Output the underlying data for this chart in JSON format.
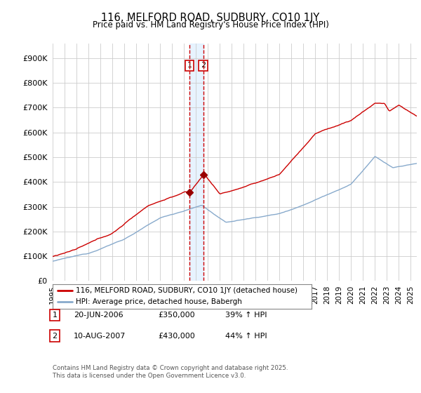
{
  "title": "116, MELFORD ROAD, SUDBURY, CO10 1JY",
  "subtitle": "Price paid vs. HM Land Registry's House Price Index (HPI)",
  "y_values": [
    0,
    100000,
    200000,
    300000,
    400000,
    500000,
    600000,
    700000,
    800000,
    900000
  ],
  "ylim": [
    0,
    960000
  ],
  "xlim_start": 1995.0,
  "xlim_end": 2025.5,
  "transaction1": {
    "date": "20-JUN-2006",
    "price": 350000,
    "hpi_pct": "39%",
    "label": "1",
    "x": 2006.46
  },
  "transaction2": {
    "date": "10-AUG-2007",
    "price": 430000,
    "hpi_pct": "44%",
    "label": "2",
    "x": 2007.61
  },
  "legend_line1": "116, MELFORD ROAD, SUDBURY, CO10 1JY (detached house)",
  "legend_line2": "HPI: Average price, detached house, Babergh",
  "footnote1": "Contains HM Land Registry data © Crown copyright and database right 2025.",
  "footnote2": "This data is licensed under the Open Government Licence v3.0.",
  "line_color_red": "#cc0000",
  "line_color_blue": "#88aacc",
  "vline_color": "#cc0000",
  "shade_color": "#ddeeff",
  "bg_color": "#ffffff",
  "grid_color": "#cccccc",
  "marker_color": "#990000"
}
